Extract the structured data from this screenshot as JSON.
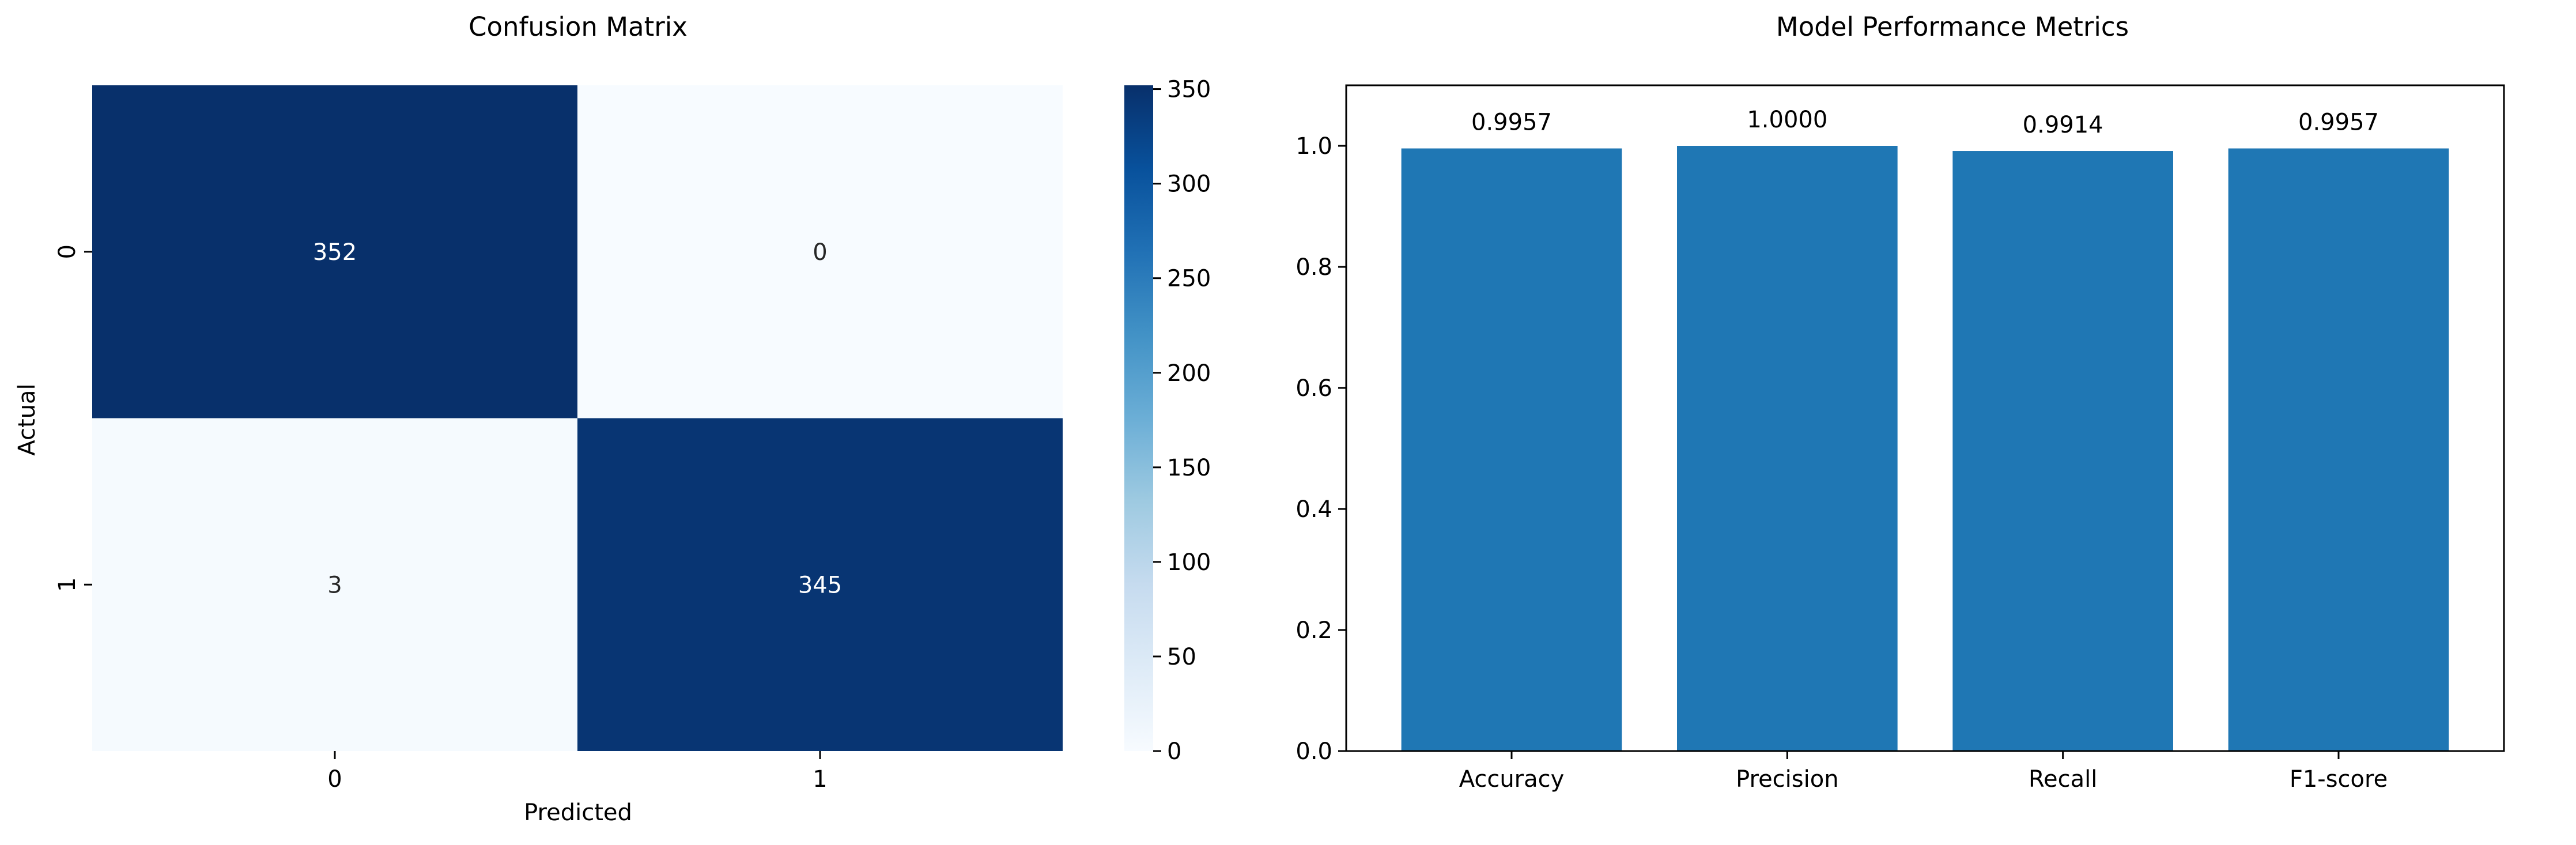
{
  "chart_data": [
    {
      "type": "heatmap",
      "title": "Confusion Matrix",
      "xlabel": "Predicted",
      "ylabel": "Actual",
      "x_categories": [
        "0",
        "1"
      ],
      "y_categories": [
        "0",
        "1"
      ],
      "values": [
        [
          352,
          0
        ],
        [
          3,
          345
        ]
      ],
      "colorbar": {
        "min": 0,
        "max": 352,
        "ticks": [
          0,
          50,
          100,
          150,
          200,
          250,
          300,
          350
        ],
        "colormap": "Blues"
      }
    },
    {
      "type": "bar",
      "title": "Model Performance Metrics",
      "categories": [
        "Accuracy",
        "Precision",
        "Recall",
        "F1-score"
      ],
      "values": [
        0.9957,
        1.0,
        0.9914,
        0.9957
      ],
      "data_labels": [
        "0.9957",
        "1.0000",
        "0.9914",
        "0.9957"
      ],
      "xlabel": "",
      "ylabel": "",
      "ylim": [
        0,
        1.1
      ],
      "yticks": [
        0.0,
        0.2,
        0.4,
        0.6,
        0.8,
        1.0
      ],
      "ytick_labels": [
        "0.0",
        "0.2",
        "0.4",
        "0.6",
        "0.8",
        "1.0"
      ],
      "bar_color": "#1f77b4"
    }
  ]
}
